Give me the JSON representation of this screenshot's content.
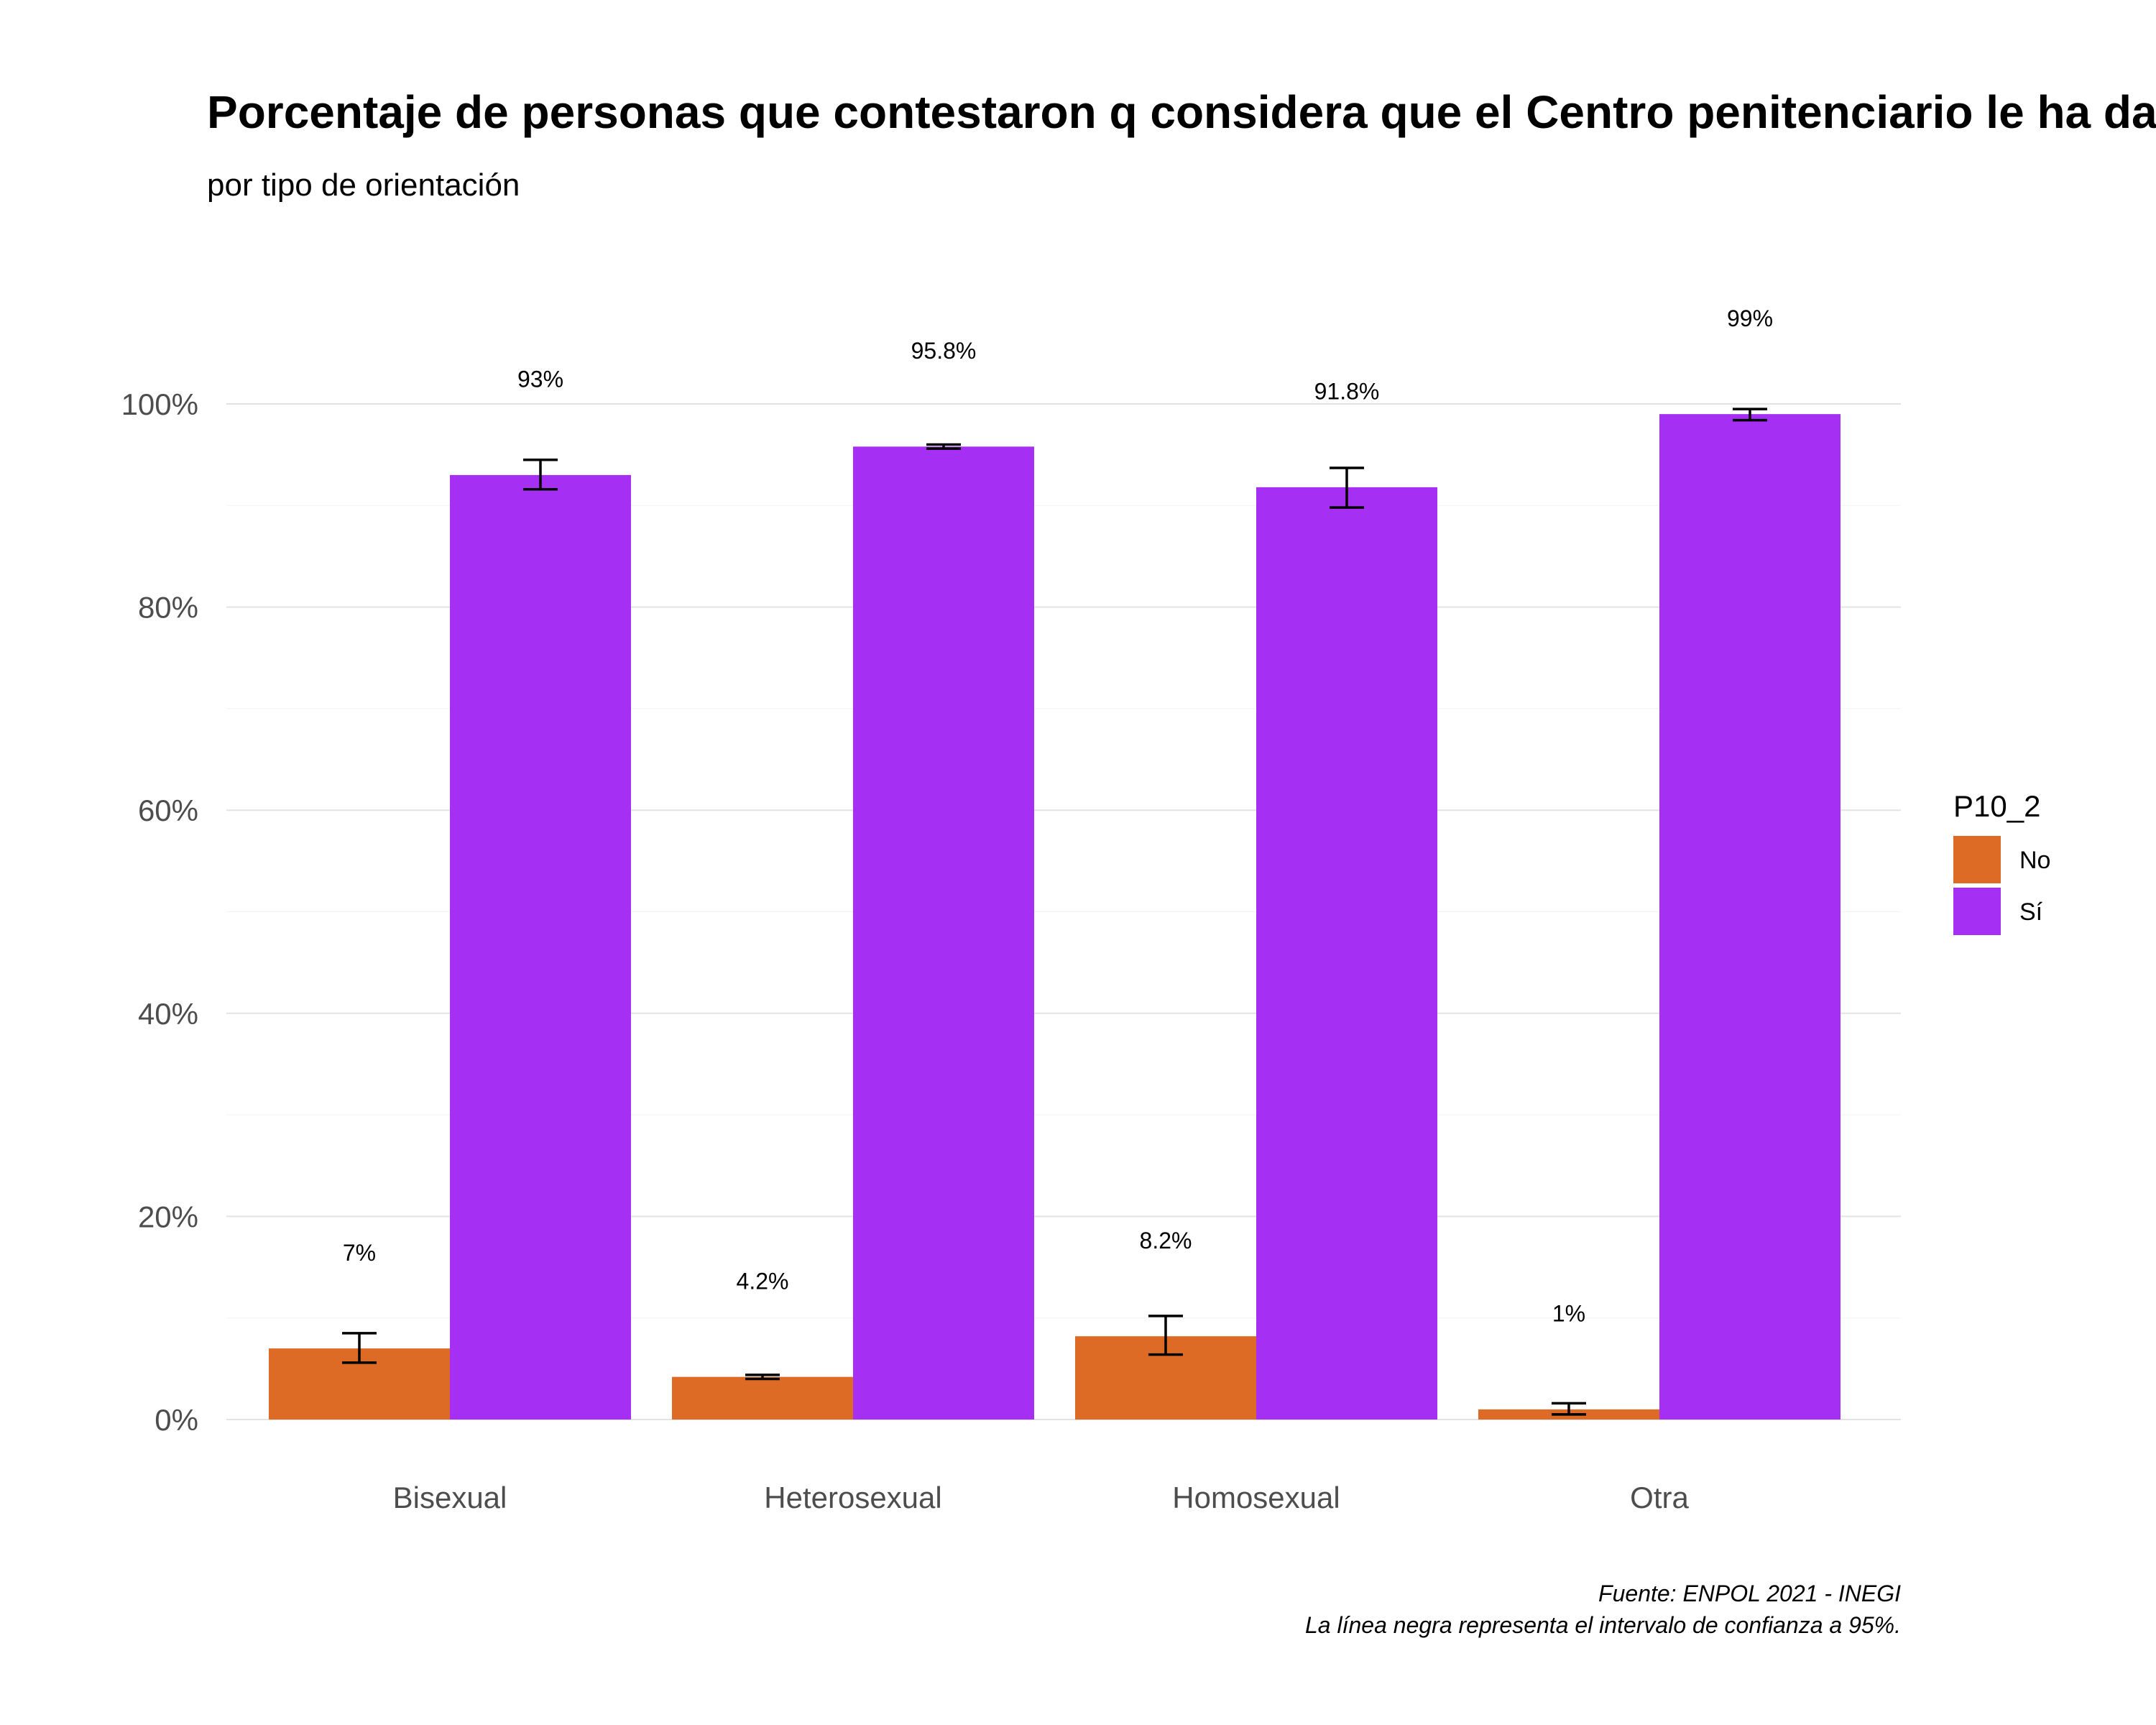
{
  "chart_data": {
    "type": "bar",
    "title": "Porcentaje de personas que contestaron q considera que el Centro penitenciario le ha dado l",
    "subtitle": "por tipo de orientación",
    "categories": [
      "Bisexual",
      "Heterosexual",
      "Homosexual",
      "Otra"
    ],
    "legend": {
      "title": "P10_2",
      "placement": "right"
    },
    "series": [
      {
        "name": "No",
        "color": "#DD6B25",
        "values": [
          7.0,
          4.2,
          8.2,
          1.0
        ],
        "ci_low": [
          5.6,
          4.0,
          6.4,
          0.5
        ],
        "ci_high": [
          8.5,
          4.4,
          10.2,
          1.6
        ],
        "labels": [
          "7%",
          "4.2%",
          "8.2%",
          "1%"
        ]
      },
      {
        "name": "Sí",
        "color": "#A52FF3",
        "values": [
          93.0,
          95.8,
          91.8,
          99.0
        ],
        "ci_low": [
          91.6,
          95.6,
          89.8,
          98.4
        ],
        "ci_high": [
          94.5,
          96.0,
          93.7,
          99.5
        ],
        "labels": [
          "93%",
          "95.8%",
          "91.8%",
          "99%"
        ]
      }
    ],
    "y_ticks": [
      "0%",
      "20%",
      "40%",
      "60%",
      "80%",
      "100%"
    ],
    "y_tick_values": [
      0,
      20,
      40,
      60,
      80,
      100
    ],
    "ylim": [
      0,
      100
    ],
    "grid": true,
    "caption": [
      "Fuente: ENPOL 2021 - INEGI",
      "La línea negra representa el intervalo de confianza a 95%."
    ]
  }
}
